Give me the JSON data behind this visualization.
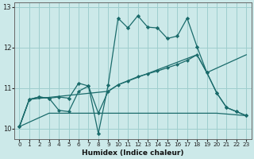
{
  "xlabel": "Humidex (Indice chaleur)",
  "background_color": "#cce9e9",
  "grid_color": "#9ecece",
  "line_color": "#1a6b6b",
  "xlim": [
    -0.5,
    23.5
  ],
  "ylim": [
    9.75,
    13.1
  ],
  "yticks": [
    10,
    11,
    12,
    13
  ],
  "xticks": [
    0,
    1,
    2,
    3,
    4,
    5,
    6,
    7,
    8,
    9,
    10,
    11,
    12,
    13,
    14,
    15,
    16,
    17,
    18,
    19,
    20,
    21,
    22,
    23
  ],
  "series1_x": [
    0,
    1,
    2,
    3,
    4,
    5,
    6,
    7,
    8,
    9,
    10,
    11,
    12,
    13,
    14,
    15,
    16,
    17,
    18,
    19,
    20,
    21,
    22,
    23
  ],
  "series1_y": [
    10.05,
    10.72,
    10.78,
    10.75,
    10.78,
    10.75,
    11.12,
    11.05,
    9.88,
    11.08,
    12.72,
    12.48,
    12.78,
    12.5,
    12.48,
    12.22,
    12.28,
    12.72,
    12.02,
    11.38,
    10.88,
    10.52,
    10.42,
    10.32
  ],
  "series2_x": [
    0,
    1,
    2,
    3,
    4,
    5,
    6,
    7,
    8,
    9,
    10,
    11,
    12,
    13,
    14,
    15,
    16,
    17,
    18,
    19,
    20,
    21,
    22,
    23
  ],
  "series2_y": [
    10.05,
    10.72,
    10.78,
    10.75,
    10.45,
    10.42,
    10.92,
    11.05,
    10.38,
    10.92,
    11.08,
    11.18,
    11.28,
    11.35,
    11.42,
    11.5,
    11.58,
    11.68,
    11.82,
    11.38,
    10.88,
    10.52,
    10.42,
    10.32
  ],
  "series3_x": [
    0,
    3,
    4,
    8,
    9,
    19,
    20,
    23
  ],
  "series3_y": [
    10.05,
    10.38,
    10.38,
    10.38,
    10.38,
    10.38,
    10.38,
    10.32
  ],
  "series4_x": [
    0,
    1,
    9,
    10,
    18,
    19,
    23
  ],
  "series4_y": [
    10.05,
    10.72,
    10.92,
    11.08,
    11.82,
    11.38,
    11.82
  ]
}
